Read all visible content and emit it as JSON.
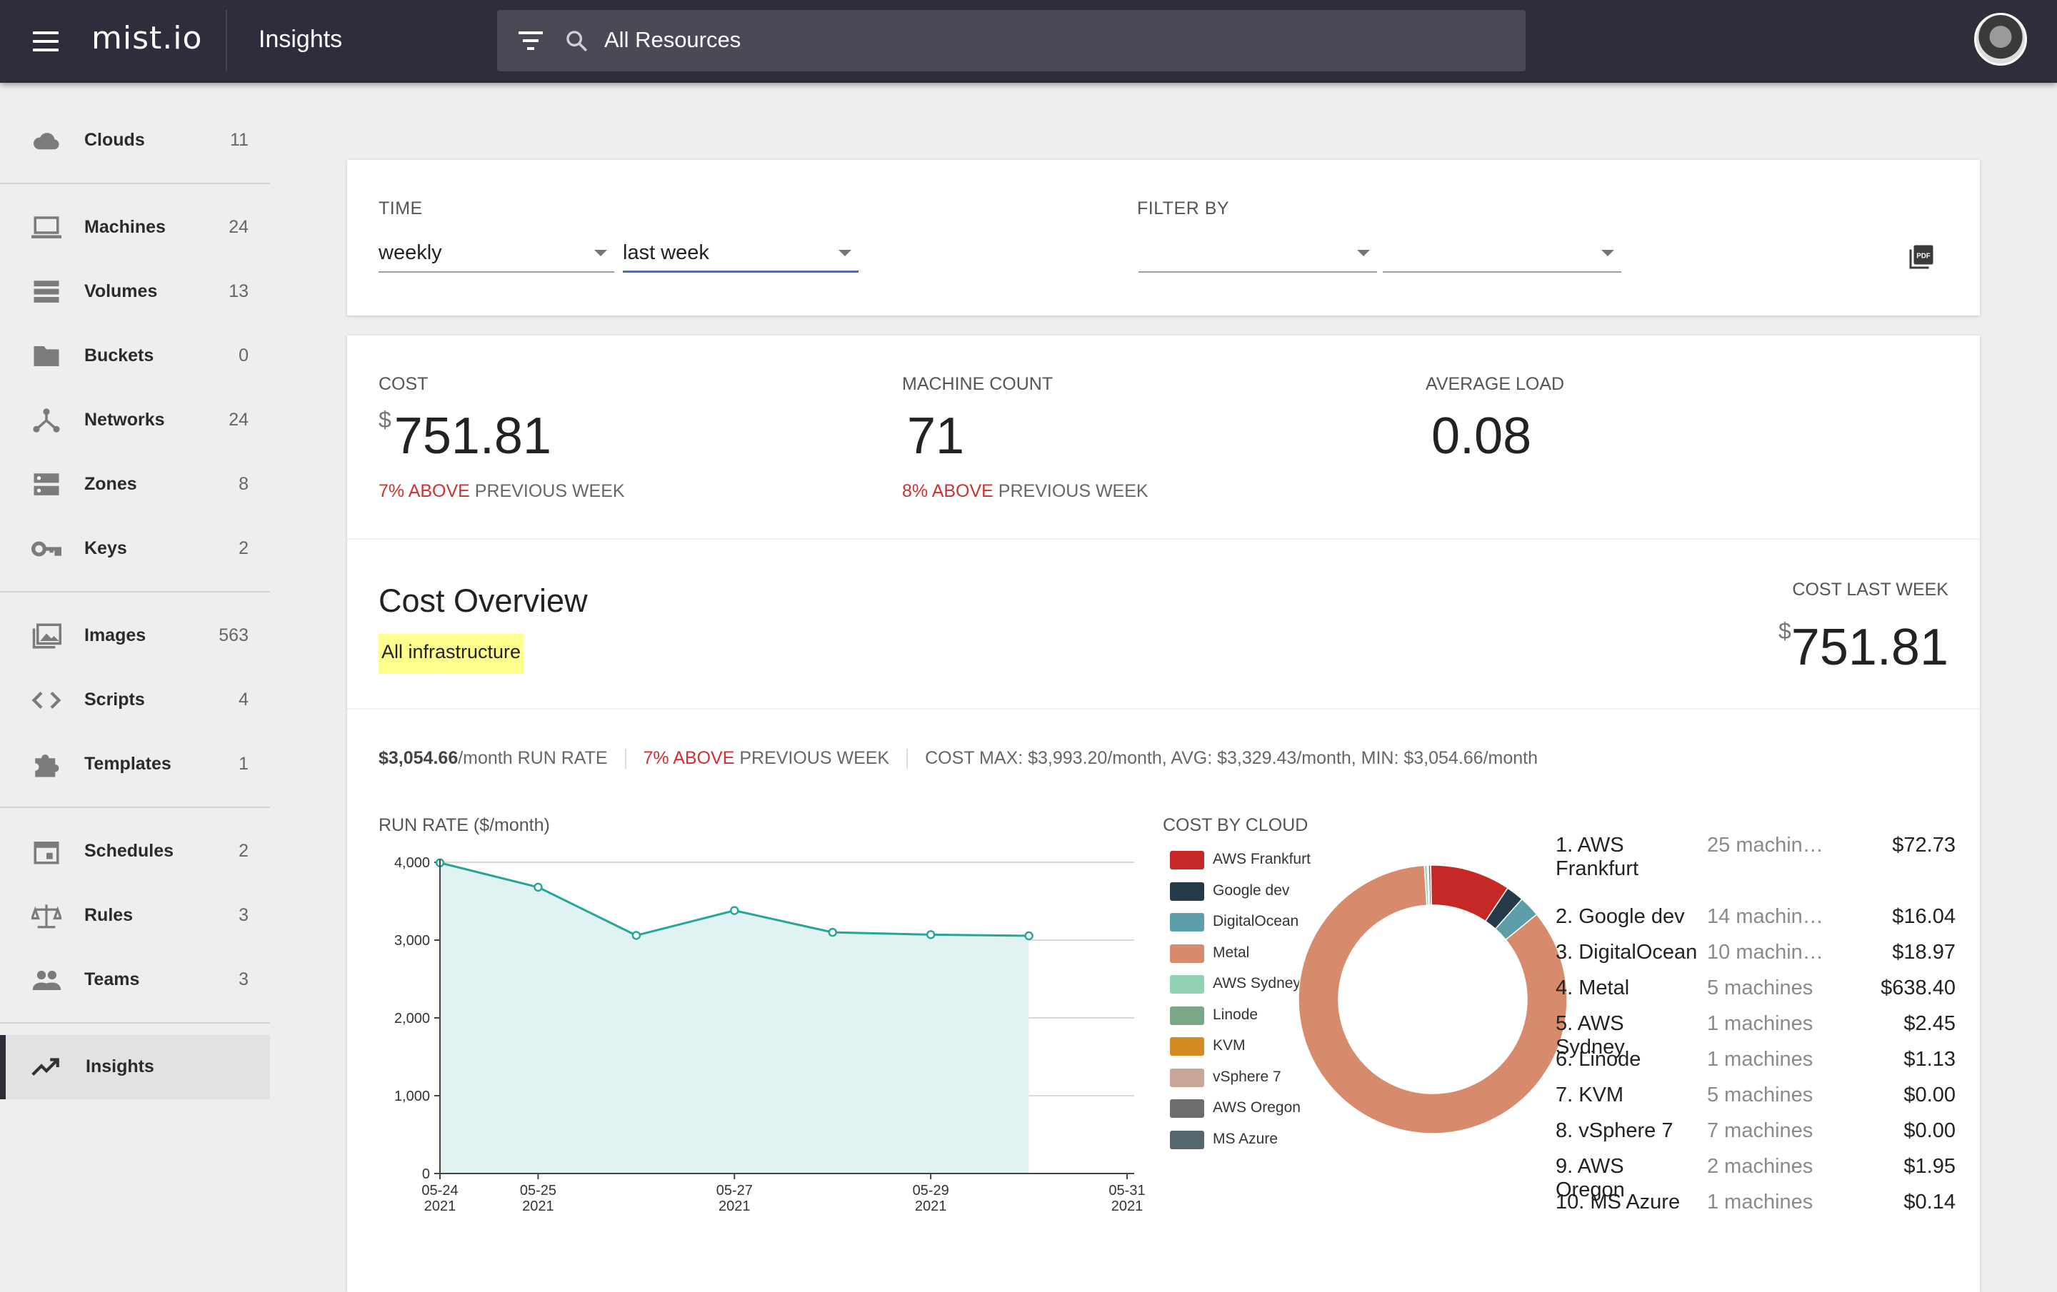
{
  "topbar": {
    "logo": "mist.io",
    "page_title": "Insights",
    "search_text": "All Resources"
  },
  "sidebar": {
    "items": [
      {
        "label": "Clouds",
        "count": "11",
        "icon": "cloud-icon"
      },
      {
        "label": "Machines",
        "count": "24",
        "icon": "laptop-icon"
      },
      {
        "label": "Volumes",
        "count": "13",
        "icon": "storage-icon"
      },
      {
        "label": "Buckets",
        "count": "0",
        "icon": "folder-icon"
      },
      {
        "label": "Networks",
        "count": "24",
        "icon": "network-icon"
      },
      {
        "label": "Zones",
        "count": "8",
        "icon": "dns-icon"
      },
      {
        "label": "Keys",
        "count": "2",
        "icon": "key-icon"
      },
      {
        "label": "Images",
        "count": "563",
        "icon": "image-icon"
      },
      {
        "label": "Scripts",
        "count": "4",
        "icon": "code-icon"
      },
      {
        "label": "Templates",
        "count": "1",
        "icon": "puzzle-icon"
      },
      {
        "label": "Schedules",
        "count": "2",
        "icon": "calendar-icon"
      },
      {
        "label": "Rules",
        "count": "3",
        "icon": "scale-icon"
      },
      {
        "label": "Teams",
        "count": "3",
        "icon": "people-icon"
      },
      {
        "label": "Insights",
        "count": "",
        "icon": "trending-up-icon"
      }
    ]
  },
  "filters": {
    "time_label": "TIME",
    "period_value": "weekly",
    "range_value": "last week",
    "filter_label": "FILTER BY",
    "filter1_value": "",
    "filter2_value": ""
  },
  "metrics": {
    "cost_label": "COST",
    "cost_currency": "$",
    "cost_value": "751.81",
    "cost_trend_pct": "7% ABOVE",
    "cost_trend_rest": " PREVIOUS WEEK",
    "machines_label": "MACHINE COUNT",
    "machines_value": "71",
    "machines_trend_pct": "8% ABOVE",
    "machines_trend_rest": " PREVIOUS WEEK",
    "load_label": "AVERAGE LOAD",
    "load_value": "0.08"
  },
  "cost_overview": {
    "title": "Cost Overview",
    "scope": "All infrastructure",
    "last_week_label": "COST LAST WEEK",
    "last_week_currency": "$",
    "last_week_value": "751.81",
    "run_rate_value": "$3,054.66",
    "run_rate_suffix": "/month RUN RATE",
    "trend_pct": "7% ABOVE",
    "trend_rest": " PREVIOUS WEEK",
    "stats": "COST MAX: $3,993.20/month, AVG: $3,329.43/month, MIN: $3,054.66/month"
  },
  "colors": {
    "accent": "#2f2d3b",
    "trend_red": "#d32f2f",
    "line": "#26a69a",
    "area": "#e0f2f1"
  },
  "chart_data": [
    {
      "type": "area",
      "title": "RUN RATE ($/month)",
      "x": [
        "2021-05-24",
        "2021-05-25",
        "2021-05-26",
        "2021-05-27",
        "2021-05-28",
        "2021-05-29",
        "2021-05-30"
      ],
      "y": [
        3993.2,
        3680,
        3060,
        3380,
        3100,
        3070,
        3054.66
      ],
      "x_ticks": [
        {
          "date": "2021-05-24",
          "label": "05-24",
          "year": "2021"
        },
        {
          "date": "2021-05-25",
          "label": "05-25",
          "year": "2021"
        },
        {
          "date": "2021-05-27",
          "label": "05-27",
          "year": "2021"
        },
        {
          "date": "2021-05-29",
          "label": "05-29",
          "year": "2021"
        },
        {
          "date": "2021-05-31",
          "label": "05-31",
          "year": "2021"
        }
      ],
      "xlim": [
        "2021-05-24",
        "2021-05-31"
      ],
      "y_ticks": [
        0,
        1000,
        2000,
        3000,
        4000
      ],
      "y_tick_labels": [
        "0",
        "1,000",
        "2,000",
        "3,000",
        "4,000"
      ],
      "ylim": [
        0,
        4000
      ],
      "grid": true
    },
    {
      "type": "pie",
      "title": "COST BY CLOUD",
      "legend_position": "left",
      "series": [
        {
          "name": "AWS Frankfurt",
          "value": 72.73,
          "color": "#c62828"
        },
        {
          "name": "Google dev",
          "value": 16.04,
          "color": "#263b4a"
        },
        {
          "name": "DigitalOcean",
          "value": 18.97,
          "color": "#5d9ea8"
        },
        {
          "name": "Metal",
          "value": 638.4,
          "color": "#d88a6c"
        },
        {
          "name": "AWS Sydney",
          "value": 2.45,
          "color": "#93d1b4"
        },
        {
          "name": "Linode",
          "value": 1.13,
          "color": "#7aa886"
        },
        {
          "name": "KVM",
          "value": 0.0,
          "color": "#d48a1e"
        },
        {
          "name": "vSphere 7",
          "value": 0.0,
          "color": "#c9a69a"
        },
        {
          "name": "AWS Oregon",
          "value": 1.95,
          "color": "#6e6e70"
        },
        {
          "name": "MS Azure",
          "value": 0.14,
          "color": "#556670"
        }
      ]
    }
  ],
  "cloud_list": [
    {
      "name": "1. AWS Frankfurt",
      "machines": "25 machin…",
      "cost": "$72.73"
    },
    {
      "name": "2. Google dev",
      "machines": "14 machin…",
      "cost": "$16.04"
    },
    {
      "name": "3. DigitalOcean",
      "machines": "10 machin…",
      "cost": "$18.97"
    },
    {
      "name": "4. Metal",
      "machines": "5 machines",
      "cost": "$638.40"
    },
    {
      "name": "5. AWS Sydney",
      "machines": "1 machines",
      "cost": "$2.45"
    },
    {
      "name": "6. Linode",
      "machines": "1 machines",
      "cost": "$1.13"
    },
    {
      "name": "7. KVM",
      "machines": "5 machines",
      "cost": "$0.00"
    },
    {
      "name": "8. vSphere 7",
      "machines": "7 machines",
      "cost": "$0.00"
    },
    {
      "name": "9. AWS Oregon",
      "machines": "2 machines",
      "cost": "$1.95"
    },
    {
      "name": "10. MS Azure",
      "machines": "1 machines",
      "cost": "$0.14"
    }
  ]
}
